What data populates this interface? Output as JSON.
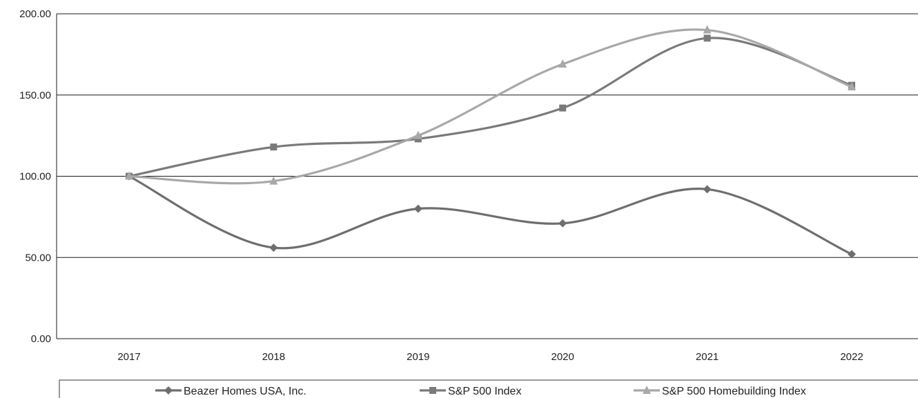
{
  "chart_data": {
    "type": "line",
    "categories": [
      "2017",
      "2018",
      "2019",
      "2020",
      "2021",
      "2022"
    ],
    "ylim": [
      0,
      200
    ],
    "yticks": [
      "0.00",
      "50.00",
      "100.00",
      "150.00",
      "200.00"
    ],
    "grid": true,
    "legend_position": "bottom",
    "series": [
      {
        "name": "Beazer Homes USA, Inc.",
        "marker": "diamond",
        "color": "#6e6e6e",
        "values": [
          100,
          56,
          80,
          71,
          92,
          52
        ]
      },
      {
        "name": "S&P 500 Index",
        "marker": "square",
        "color": "#7a7a7a",
        "values": [
          100,
          118,
          123,
          142,
          185,
          156
        ]
      },
      {
        "name": "S&P 500 Homebuilding Index",
        "marker": "triangle",
        "color": "#a8a8a8",
        "values": [
          100,
          97,
          125,
          169,
          190,
          155
        ]
      }
    ]
  }
}
